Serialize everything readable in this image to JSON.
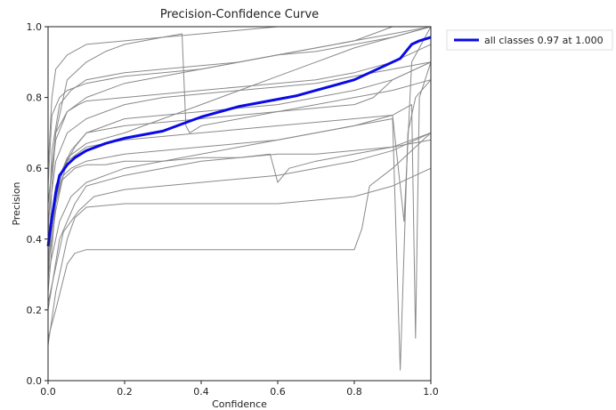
{
  "chart_data": {
    "type": "line",
    "title": "Precision-Confidence Curve",
    "xlabel": "Confidence",
    "ylabel": "Precision",
    "xlim": [
      0,
      1
    ],
    "ylim": [
      0,
      1
    ],
    "xticks": [
      "0.0",
      "0.2",
      "0.4",
      "0.6",
      "0.8",
      "1.0"
    ],
    "yticks": [
      "0.0",
      "0.2",
      "0.4",
      "0.6",
      "0.8",
      "1.0"
    ],
    "grid": false,
    "legend_position": "outside-top-right",
    "colors": {
      "all_classes": "#0a0ae6",
      "per_class": "#8a8a8a",
      "frame": "#222222"
    },
    "series": [
      {
        "name": "all classes 0.97 at 1.000",
        "emphasis": true,
        "x": [
          0.0,
          0.01,
          0.02,
          0.03,
          0.05,
          0.07,
          0.1,
          0.15,
          0.2,
          0.25,
          0.3,
          0.35,
          0.4,
          0.45,
          0.5,
          0.55,
          0.6,
          0.65,
          0.7,
          0.75,
          0.8,
          0.85,
          0.88,
          0.9,
          0.92,
          0.95,
          0.97,
          1.0
        ],
        "values": [
          0.38,
          0.46,
          0.53,
          0.58,
          0.61,
          0.63,
          0.65,
          0.67,
          0.685,
          0.695,
          0.705,
          0.725,
          0.745,
          0.76,
          0.775,
          0.785,
          0.795,
          0.805,
          0.82,
          0.835,
          0.85,
          0.875,
          0.89,
          0.9,
          0.91,
          0.95,
          0.96,
          0.97
        ]
      },
      {
        "x": [
          0.0,
          0.01,
          0.02,
          0.05,
          0.1,
          0.2,
          0.3,
          0.4,
          0.5,
          0.6,
          0.7,
          0.8,
          0.85,
          0.9,
          0.95,
          1.0
        ],
        "values": [
          0.3,
          0.55,
          0.7,
          0.76,
          0.8,
          0.84,
          0.86,
          0.88,
          0.9,
          0.92,
          0.94,
          0.96,
          0.98,
          1.0,
          1.0,
          1.0
        ]
      },
      {
        "x": [
          0.0,
          0.01,
          0.02,
          0.04,
          0.06,
          0.1,
          0.2,
          0.3,
          0.4,
          0.5,
          0.6,
          0.7,
          0.8,
          0.9,
          1.0
        ],
        "values": [
          0.28,
          0.45,
          0.55,
          0.6,
          0.65,
          0.7,
          0.74,
          0.75,
          0.76,
          0.77,
          0.78,
          0.8,
          0.82,
          0.85,
          0.9
        ]
      },
      {
        "x": [
          0.0,
          0.02,
          0.05,
          0.07,
          0.1,
          0.2,
          0.3,
          0.4,
          0.5,
          0.6,
          0.7,
          0.8,
          0.9,
          1.0
        ],
        "values": [
          0.1,
          0.25,
          0.4,
          0.46,
          0.49,
          0.5,
          0.5,
          0.5,
          0.5,
          0.5,
          0.51,
          0.52,
          0.55,
          0.6
        ]
      },
      {
        "x": [
          0.0,
          0.02,
          0.05,
          0.07,
          0.1,
          0.15,
          0.2,
          0.3,
          0.4,
          0.5,
          0.6,
          0.7,
          0.8,
          0.82,
          0.84,
          0.9,
          0.95,
          1.0
        ],
        "values": [
          0.12,
          0.2,
          0.33,
          0.36,
          0.37,
          0.37,
          0.37,
          0.37,
          0.37,
          0.37,
          0.37,
          0.37,
          0.37,
          0.43,
          0.55,
          0.6,
          0.65,
          0.7
        ]
      },
      {
        "x": [
          0.0,
          0.02,
          0.04,
          0.07,
          0.1,
          0.2,
          0.3,
          0.4,
          0.5,
          0.6,
          0.7,
          0.8,
          0.85,
          0.9,
          1.0
        ],
        "values": [
          0.35,
          0.5,
          0.6,
          0.66,
          0.7,
          0.72,
          0.73,
          0.74,
          0.75,
          0.76,
          0.77,
          0.78,
          0.8,
          0.85,
          0.9
        ]
      },
      {
        "x": [
          0.0,
          0.01,
          0.03,
          0.06,
          0.1,
          0.2,
          0.3,
          0.4,
          0.5,
          0.6,
          0.7,
          0.8,
          0.9,
          1.0
        ],
        "values": [
          0.4,
          0.65,
          0.78,
          0.82,
          0.85,
          0.87,
          0.88,
          0.89,
          0.9,
          0.92,
          0.94,
          0.96,
          0.98,
          1.0
        ]
      },
      {
        "x": [
          0.0,
          0.02,
          0.05,
          0.1,
          0.15,
          0.2,
          0.3,
          0.35,
          0.36,
          0.37,
          0.4,
          0.5,
          0.6,
          0.7,
          0.8,
          0.9,
          1.0
        ],
        "values": [
          0.5,
          0.7,
          0.85,
          0.9,
          0.93,
          0.95,
          0.97,
          0.98,
          0.72,
          0.7,
          0.72,
          0.74,
          0.76,
          0.78,
          0.8,
          0.82,
          0.85
        ]
      },
      {
        "x": [
          0.0,
          0.03,
          0.07,
          0.1,
          0.2,
          0.3,
          0.4,
          0.5,
          0.58,
          0.6,
          0.63,
          0.7,
          0.8,
          0.9,
          1.0
        ],
        "values": [
          0.2,
          0.4,
          0.5,
          0.55,
          0.58,
          0.6,
          0.62,
          0.63,
          0.64,
          0.56,
          0.6,
          0.62,
          0.64,
          0.66,
          0.7
        ]
      },
      {
        "x": [
          0.0,
          0.01,
          0.03,
          0.05,
          0.1,
          0.2,
          0.3,
          0.4,
          0.5,
          0.6,
          0.7,
          0.8,
          0.9,
          1.0
        ],
        "values": [
          0.55,
          0.75,
          0.8,
          0.82,
          0.84,
          0.86,
          0.87,
          0.88,
          0.9,
          0.92,
          0.93,
          0.95,
          0.97,
          1.0
        ]
      },
      {
        "x": [
          0.0,
          0.02,
          0.05,
          0.1,
          0.2,
          0.3,
          0.4,
          0.5,
          0.6,
          0.7,
          0.8,
          0.9,
          0.93,
          0.95,
          1.0
        ],
        "values": [
          0.25,
          0.5,
          0.62,
          0.66,
          0.68,
          0.69,
          0.7,
          0.71,
          0.72,
          0.73,
          0.74,
          0.75,
          0.45,
          0.9,
          1.0
        ]
      },
      {
        "x": [
          0.0,
          0.02,
          0.04,
          0.06,
          0.1,
          0.2,
          0.3,
          0.4,
          0.5,
          0.6,
          0.7,
          0.8,
          0.9,
          0.92,
          0.94,
          0.96,
          1.0
        ],
        "values": [
          0.32,
          0.48,
          0.58,
          0.6,
          0.62,
          0.64,
          0.65,
          0.66,
          0.67,
          0.68,
          0.7,
          0.72,
          0.74,
          0.03,
          0.7,
          0.8,
          0.85
        ]
      },
      {
        "x": [
          0.0,
          0.03,
          0.06,
          0.1,
          0.2,
          0.3,
          0.4,
          0.5,
          0.6,
          0.7,
          0.8,
          0.9,
          0.95,
          0.96,
          0.97,
          1.0
        ],
        "values": [
          0.3,
          0.45,
          0.52,
          0.56,
          0.6,
          0.62,
          0.64,
          0.66,
          0.68,
          0.7,
          0.72,
          0.75,
          0.78,
          0.12,
          0.8,
          0.9
        ]
      },
      {
        "x": [
          0.0,
          0.02,
          0.05,
          0.1,
          0.15,
          0.2,
          0.3,
          0.4,
          0.5,
          0.6,
          0.7,
          0.8,
          0.9,
          1.0
        ],
        "values": [
          0.45,
          0.62,
          0.7,
          0.74,
          0.76,
          0.78,
          0.8,
          0.81,
          0.82,
          0.83,
          0.84,
          0.86,
          0.88,
          0.9
        ]
      },
      {
        "x": [
          0.0,
          0.02,
          0.05,
          0.1,
          0.2,
          0.25,
          0.3,
          0.4,
          0.5,
          0.6,
          0.7,
          0.8,
          0.9,
          1.0
        ],
        "values": [
          0.38,
          0.55,
          0.63,
          0.67,
          0.7,
          0.72,
          0.74,
          0.78,
          0.82,
          0.86,
          0.9,
          0.94,
          0.97,
          1.0
        ]
      },
      {
        "x": [
          0.0,
          0.01,
          0.02,
          0.05,
          0.1,
          0.2,
          0.3,
          0.4,
          0.5,
          0.6,
          0.7,
          0.8,
          0.9,
          1.0
        ],
        "values": [
          0.6,
          0.8,
          0.88,
          0.92,
          0.95,
          0.96,
          0.97,
          0.98,
          0.99,
          1.0,
          1.0,
          1.0,
          1.0,
          1.0
        ]
      },
      {
        "x": [
          0.0,
          0.03,
          0.07,
          0.1,
          0.15,
          0.2,
          0.3,
          0.4,
          0.5,
          0.6,
          0.7,
          0.8,
          0.9,
          1.0
        ],
        "values": [
          0.42,
          0.56,
          0.6,
          0.61,
          0.61,
          0.62,
          0.62,
          0.63,
          0.63,
          0.64,
          0.64,
          0.65,
          0.66,
          0.68
        ]
      },
      {
        "x": [
          0.0,
          0.02,
          0.05,
          0.08,
          0.1,
          0.2,
          0.3,
          0.4,
          0.5,
          0.6,
          0.7,
          0.8,
          0.9,
          1.0
        ],
        "values": [
          0.5,
          0.68,
          0.76,
          0.78,
          0.79,
          0.8,
          0.81,
          0.82,
          0.83,
          0.84,
          0.85,
          0.87,
          0.9,
          0.95
        ]
      },
      {
        "x": [
          0.0,
          0.04,
          0.08,
          0.12,
          0.2,
          0.3,
          0.4,
          0.5,
          0.6,
          0.7,
          0.8,
          0.9,
          1.0
        ],
        "values": [
          0.22,
          0.42,
          0.48,
          0.52,
          0.54,
          0.55,
          0.56,
          0.57,
          0.58,
          0.6,
          0.62,
          0.65,
          0.7
        ]
      }
    ],
    "legend": [
      {
        "label": "all classes 0.97 at 1.000"
      }
    ]
  }
}
